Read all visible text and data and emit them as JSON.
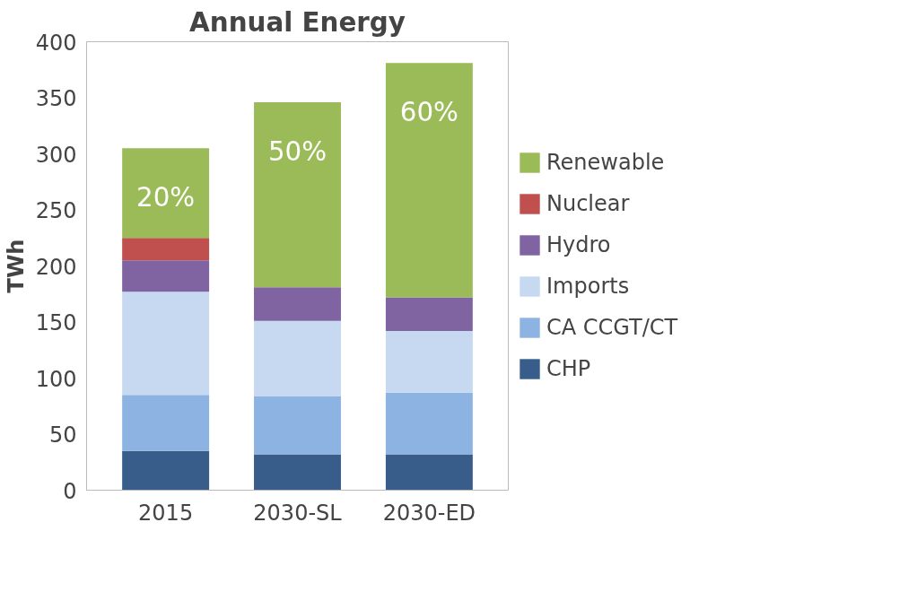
{
  "chart_data": {
    "type": "bar",
    "title": "Annual Energy",
    "ylabel": "TWh",
    "categories": [
      "2015",
      "2030-SL",
      "2030-ED"
    ],
    "stacked": true,
    "series": [
      {
        "name": "CHP",
        "color": "#385d8a",
        "values": [
          35,
          32,
          32
        ]
      },
      {
        "name": "CA CCGT/CT",
        "color": "#8db3e2",
        "values": [
          50,
          52,
          55
        ]
      },
      {
        "name": "Imports",
        "color": "#c6d9f1",
        "values": [
          92,
          67,
          55
        ]
      },
      {
        "name": "Hydro",
        "color": "#8064a2",
        "values": [
          28,
          30,
          30
        ]
      },
      {
        "name": "Nuclear",
        "color": "#c0504d",
        "values": [
          20,
          0,
          0
        ]
      },
      {
        "name": "Renewable",
        "color": "#9bbb59",
        "values": [
          80,
          165,
          209
        ]
      }
    ],
    "ylim": [
      0,
      400
    ],
    "yticks": [
      0,
      50,
      100,
      150,
      200,
      250,
      300,
      350,
      400
    ],
    "legend": "right",
    "grid": false,
    "annotations": [
      "20%",
      "50%",
      "60%"
    ]
  }
}
